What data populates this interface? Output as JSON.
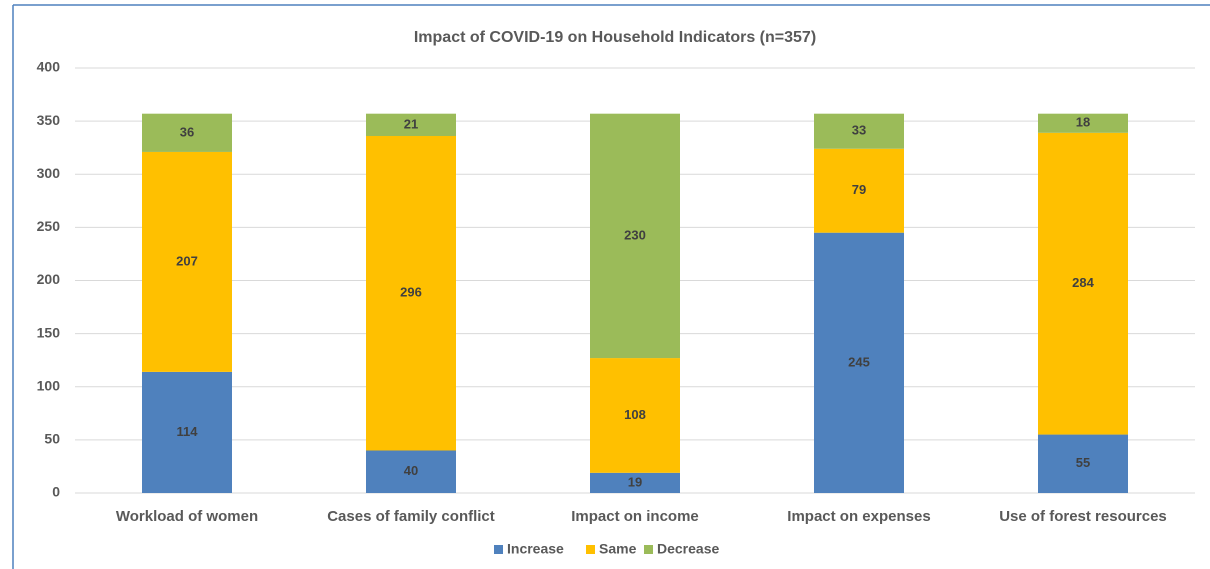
{
  "chart_data": {
    "type": "stacked_bar",
    "title": "Impact of COVID-19 on Household Indicators (n=357)",
    "categories": [
      "Workload of women",
      "Cases of family conflict",
      "Impact on income",
      "Impact on expenses",
      "Use of forest resources"
    ],
    "series": [
      {
        "name": "Increase",
        "color": "#4f81bd",
        "values": [
          114,
          40,
          19,
          245,
          55
        ]
      },
      {
        "name": "Same",
        "color": "#ffc000",
        "values": [
          207,
          296,
          108,
          79,
          284
        ]
      },
      {
        "name": "Decrease",
        "color": "#9bbb59",
        "values": [
          36,
          21,
          230,
          33,
          18
        ]
      }
    ],
    "ylim": [
      0,
      400
    ],
    "yticks": [
      0,
      50,
      100,
      150,
      200,
      250,
      300,
      350,
      400
    ],
    "grid": true,
    "legend": "bottom"
  }
}
